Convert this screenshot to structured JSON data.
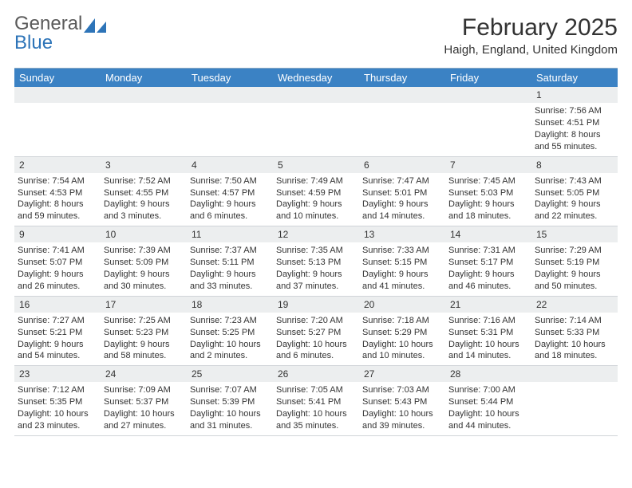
{
  "logo": {
    "word1": "General",
    "word2": "Blue"
  },
  "title": "February 2025",
  "location": "Haigh, England, United Kingdom",
  "colors": {
    "header_bg": "#3b82c4",
    "header_text": "#ffffff",
    "daynum_bg": "#eceeef",
    "border": "#d0d4d8",
    "top_rule": "#8aa8c4",
    "logo_gray": "#5a5a5a",
    "logo_blue": "#2d74b8"
  },
  "day_names": [
    "Sunday",
    "Monday",
    "Tuesday",
    "Wednesday",
    "Thursday",
    "Friday",
    "Saturday"
  ],
  "weeks": [
    [
      null,
      null,
      null,
      null,
      null,
      null,
      {
        "n": "1",
        "sr": "Sunrise: 7:56 AM",
        "ss": "Sunset: 4:51 PM",
        "d1": "Daylight: 8 hours",
        "d2": "and 55 minutes."
      }
    ],
    [
      {
        "n": "2",
        "sr": "Sunrise: 7:54 AM",
        "ss": "Sunset: 4:53 PM",
        "d1": "Daylight: 8 hours",
        "d2": "and 59 minutes."
      },
      {
        "n": "3",
        "sr": "Sunrise: 7:52 AM",
        "ss": "Sunset: 4:55 PM",
        "d1": "Daylight: 9 hours",
        "d2": "and 3 minutes."
      },
      {
        "n": "4",
        "sr": "Sunrise: 7:50 AM",
        "ss": "Sunset: 4:57 PM",
        "d1": "Daylight: 9 hours",
        "d2": "and 6 minutes."
      },
      {
        "n": "5",
        "sr": "Sunrise: 7:49 AM",
        "ss": "Sunset: 4:59 PM",
        "d1": "Daylight: 9 hours",
        "d2": "and 10 minutes."
      },
      {
        "n": "6",
        "sr": "Sunrise: 7:47 AM",
        "ss": "Sunset: 5:01 PM",
        "d1": "Daylight: 9 hours",
        "d2": "and 14 minutes."
      },
      {
        "n": "7",
        "sr": "Sunrise: 7:45 AM",
        "ss": "Sunset: 5:03 PM",
        "d1": "Daylight: 9 hours",
        "d2": "and 18 minutes."
      },
      {
        "n": "8",
        "sr": "Sunrise: 7:43 AM",
        "ss": "Sunset: 5:05 PM",
        "d1": "Daylight: 9 hours",
        "d2": "and 22 minutes."
      }
    ],
    [
      {
        "n": "9",
        "sr": "Sunrise: 7:41 AM",
        "ss": "Sunset: 5:07 PM",
        "d1": "Daylight: 9 hours",
        "d2": "and 26 minutes."
      },
      {
        "n": "10",
        "sr": "Sunrise: 7:39 AM",
        "ss": "Sunset: 5:09 PM",
        "d1": "Daylight: 9 hours",
        "d2": "and 30 minutes."
      },
      {
        "n": "11",
        "sr": "Sunrise: 7:37 AM",
        "ss": "Sunset: 5:11 PM",
        "d1": "Daylight: 9 hours",
        "d2": "and 33 minutes."
      },
      {
        "n": "12",
        "sr": "Sunrise: 7:35 AM",
        "ss": "Sunset: 5:13 PM",
        "d1": "Daylight: 9 hours",
        "d2": "and 37 minutes."
      },
      {
        "n": "13",
        "sr": "Sunrise: 7:33 AM",
        "ss": "Sunset: 5:15 PM",
        "d1": "Daylight: 9 hours",
        "d2": "and 41 minutes."
      },
      {
        "n": "14",
        "sr": "Sunrise: 7:31 AM",
        "ss": "Sunset: 5:17 PM",
        "d1": "Daylight: 9 hours",
        "d2": "and 46 minutes."
      },
      {
        "n": "15",
        "sr": "Sunrise: 7:29 AM",
        "ss": "Sunset: 5:19 PM",
        "d1": "Daylight: 9 hours",
        "d2": "and 50 minutes."
      }
    ],
    [
      {
        "n": "16",
        "sr": "Sunrise: 7:27 AM",
        "ss": "Sunset: 5:21 PM",
        "d1": "Daylight: 9 hours",
        "d2": "and 54 minutes."
      },
      {
        "n": "17",
        "sr": "Sunrise: 7:25 AM",
        "ss": "Sunset: 5:23 PM",
        "d1": "Daylight: 9 hours",
        "d2": "and 58 minutes."
      },
      {
        "n": "18",
        "sr": "Sunrise: 7:23 AM",
        "ss": "Sunset: 5:25 PM",
        "d1": "Daylight: 10 hours",
        "d2": "and 2 minutes."
      },
      {
        "n": "19",
        "sr": "Sunrise: 7:20 AM",
        "ss": "Sunset: 5:27 PM",
        "d1": "Daylight: 10 hours",
        "d2": "and 6 minutes."
      },
      {
        "n": "20",
        "sr": "Sunrise: 7:18 AM",
        "ss": "Sunset: 5:29 PM",
        "d1": "Daylight: 10 hours",
        "d2": "and 10 minutes."
      },
      {
        "n": "21",
        "sr": "Sunrise: 7:16 AM",
        "ss": "Sunset: 5:31 PM",
        "d1": "Daylight: 10 hours",
        "d2": "and 14 minutes."
      },
      {
        "n": "22",
        "sr": "Sunrise: 7:14 AM",
        "ss": "Sunset: 5:33 PM",
        "d1": "Daylight: 10 hours",
        "d2": "and 18 minutes."
      }
    ],
    [
      {
        "n": "23",
        "sr": "Sunrise: 7:12 AM",
        "ss": "Sunset: 5:35 PM",
        "d1": "Daylight: 10 hours",
        "d2": "and 23 minutes."
      },
      {
        "n": "24",
        "sr": "Sunrise: 7:09 AM",
        "ss": "Sunset: 5:37 PM",
        "d1": "Daylight: 10 hours",
        "d2": "and 27 minutes."
      },
      {
        "n": "25",
        "sr": "Sunrise: 7:07 AM",
        "ss": "Sunset: 5:39 PM",
        "d1": "Daylight: 10 hours",
        "d2": "and 31 minutes."
      },
      {
        "n": "26",
        "sr": "Sunrise: 7:05 AM",
        "ss": "Sunset: 5:41 PM",
        "d1": "Daylight: 10 hours",
        "d2": "and 35 minutes."
      },
      {
        "n": "27",
        "sr": "Sunrise: 7:03 AM",
        "ss": "Sunset: 5:43 PM",
        "d1": "Daylight: 10 hours",
        "d2": "and 39 minutes."
      },
      {
        "n": "28",
        "sr": "Sunrise: 7:00 AM",
        "ss": "Sunset: 5:44 PM",
        "d1": "Daylight: 10 hours",
        "d2": "and 44 minutes."
      },
      null
    ]
  ]
}
